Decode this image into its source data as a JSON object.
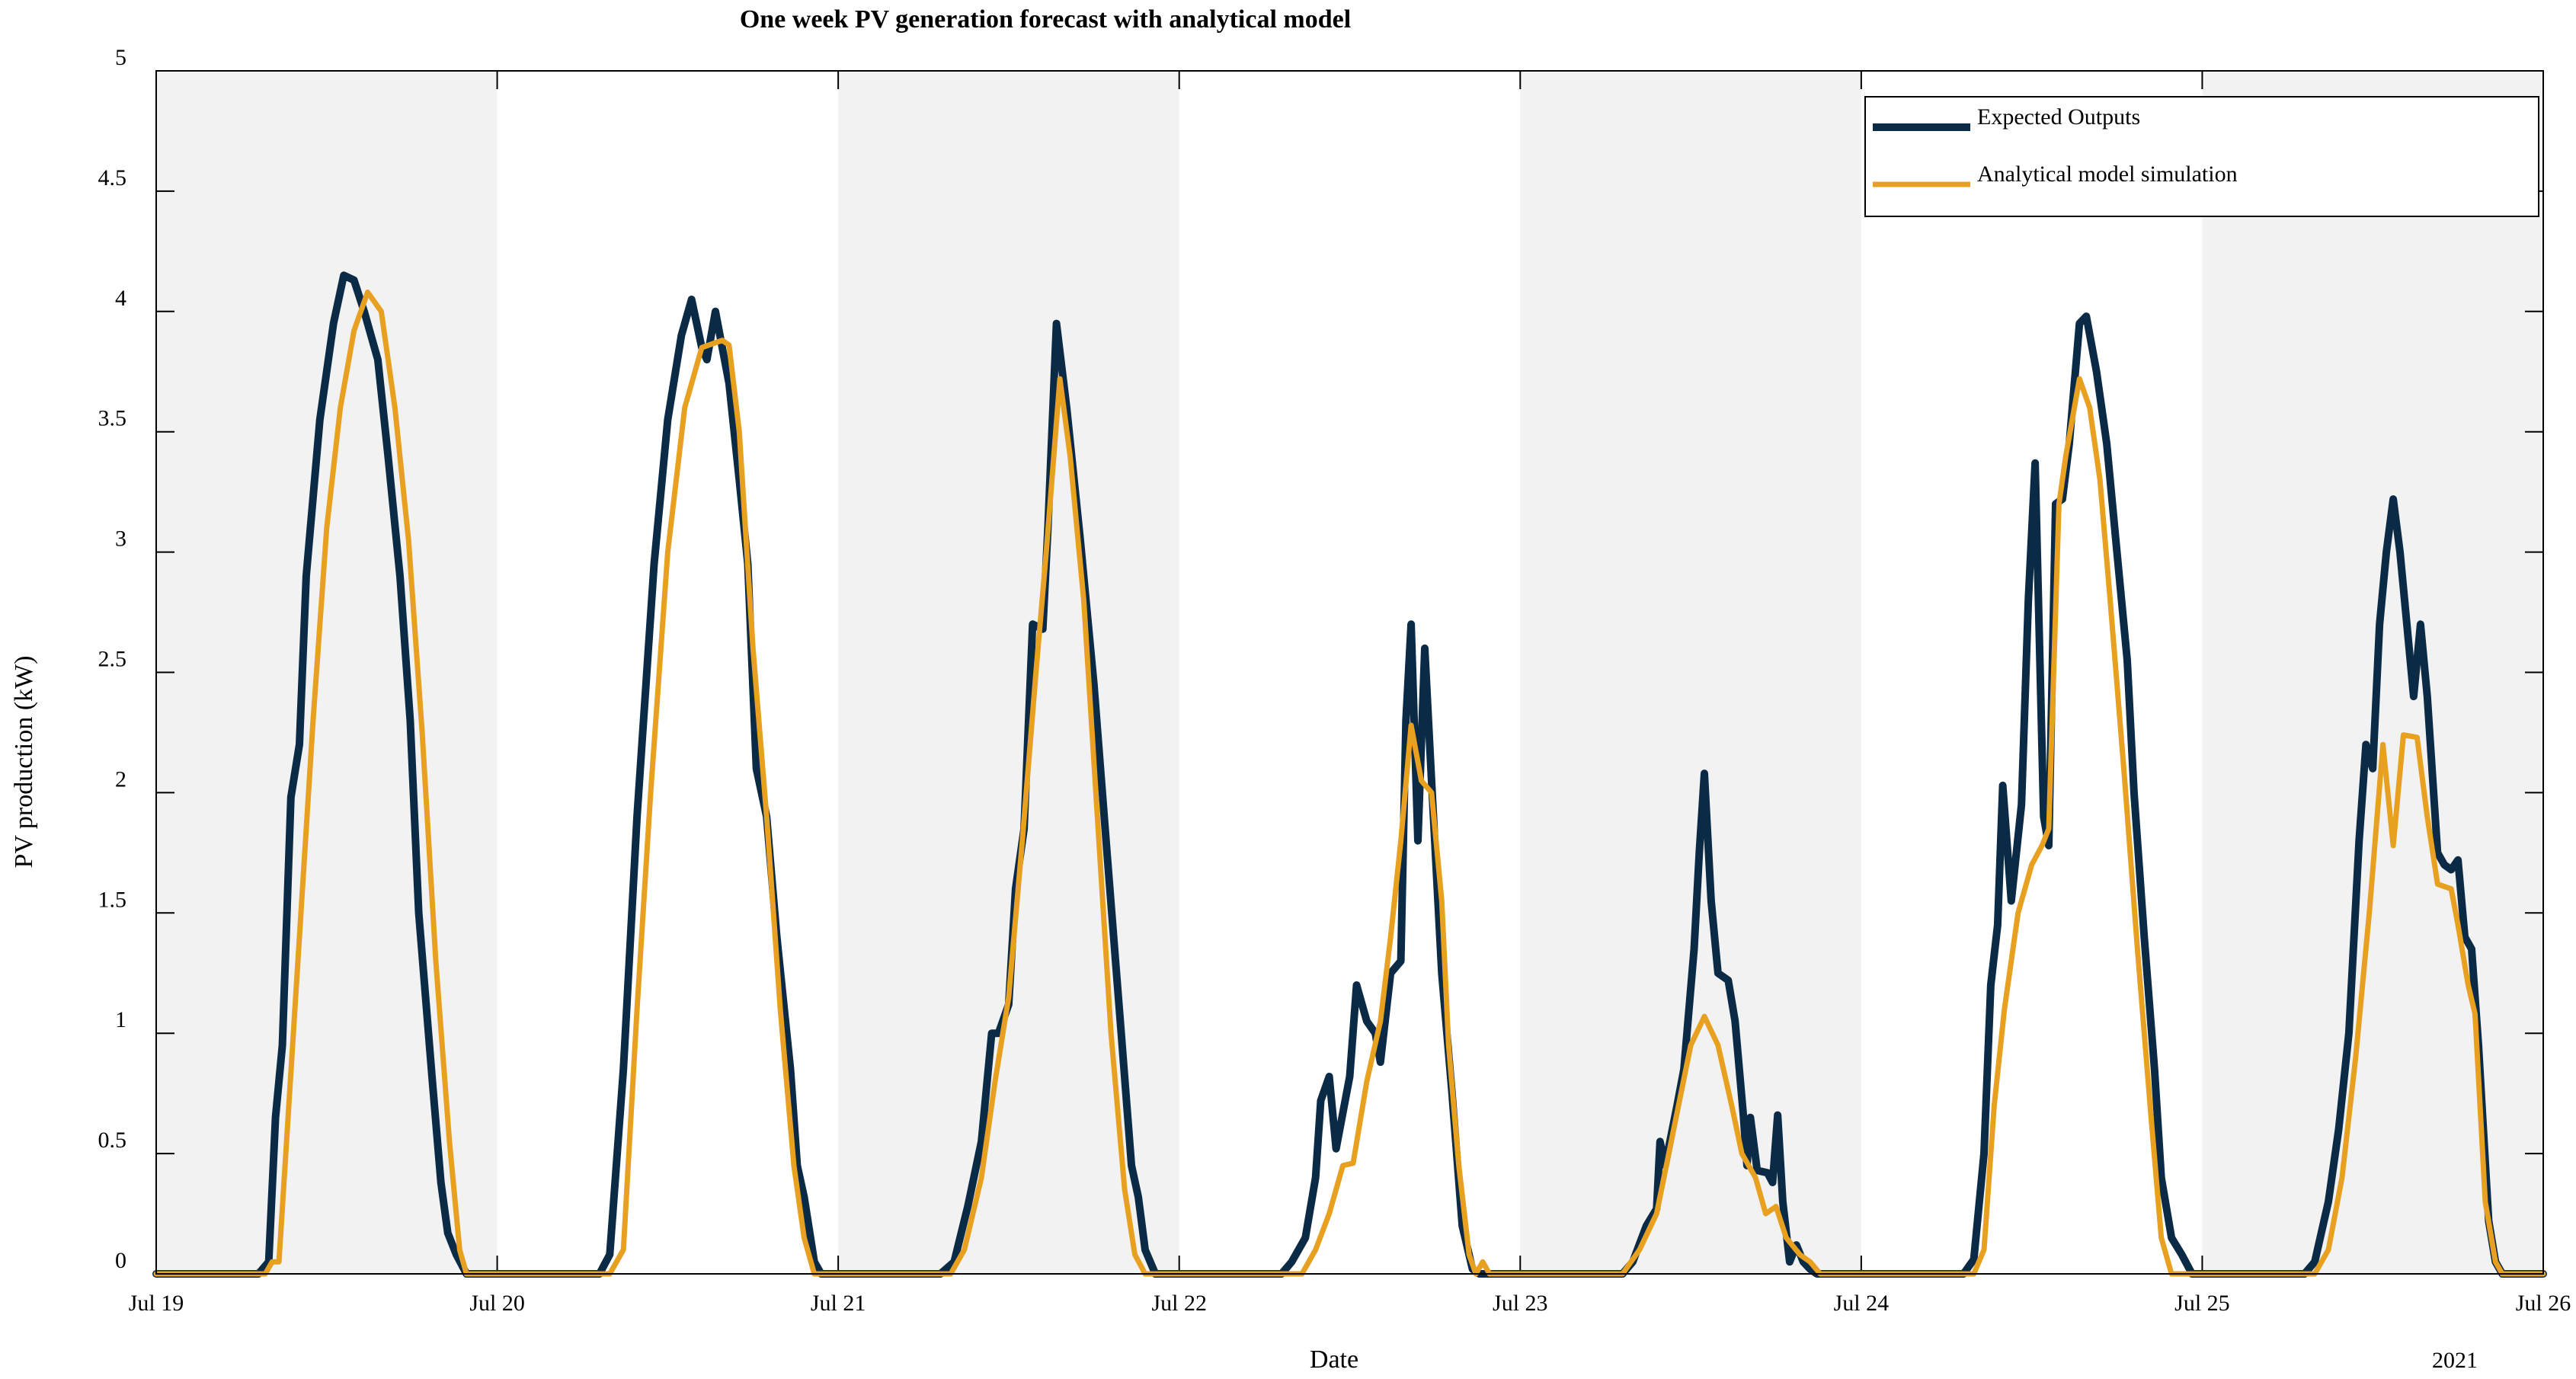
{
  "chart_data": {
    "type": "line",
    "title": "One week PV generation forecast with analytical model",
    "xlabel": "Date",
    "ylabel": "PV production (kW)",
    "year_label": "2021",
    "x_unit": "days since Jul 19, 2021",
    "xlim": [
      0,
      7
    ],
    "ylim": [
      0,
      5
    ],
    "x_ticks": [
      0,
      1,
      2,
      3,
      4,
      5,
      6,
      7
    ],
    "x_tick_labels": [
      "Jul 19",
      "Jul 20",
      "Jul 21",
      "Jul 22",
      "Jul 23",
      "Jul 24",
      "Jul 25",
      "Jul 26"
    ],
    "y_ticks": [
      0,
      0.5,
      1,
      1.5,
      2,
      2.5,
      3,
      3.5,
      4,
      4.5,
      5
    ],
    "y_tick_labels": [
      "0",
      "0.5",
      "1",
      "1.5",
      "2",
      "2.5",
      "3",
      "3.5",
      "4",
      "4.5",
      "5"
    ],
    "grid": false,
    "shaded_day_bands": [
      [
        0,
        1
      ],
      [
        2,
        3
      ],
      [
        4,
        5
      ],
      [
        6,
        7
      ]
    ],
    "legend": {
      "placement": "top-right"
    },
    "series": [
      {
        "name": "Expected Outputs",
        "color": "#0b2a45",
        "points": [
          [
            0,
            0
          ],
          [
            0.3,
            0
          ],
          [
            0.33,
            0.05
          ],
          [
            0.35,
            0.65
          ],
          [
            0.37,
            0.95
          ],
          [
            0.395,
            1.98
          ],
          [
            0.42,
            2.2
          ],
          [
            0.44,
            2.9
          ],
          [
            0.48,
            3.55
          ],
          [
            0.52,
            3.95
          ],
          [
            0.55,
            4.15
          ],
          [
            0.58,
            4.13
          ],
          [
            0.61,
            4.0
          ],
          [
            0.65,
            3.8
          ],
          [
            0.68,
            3.4
          ],
          [
            0.715,
            2.9
          ],
          [
            0.745,
            2.3
          ],
          [
            0.77,
            1.5
          ],
          [
            0.81,
            0.8
          ],
          [
            0.835,
            0.38
          ],
          [
            0.855,
            0.17
          ],
          [
            0.88,
            0.08
          ],
          [
            0.91,
            0
          ],
          [
            1,
            0
          ],
          [
            1.3,
            0
          ],
          [
            1.33,
            0.08
          ],
          [
            1.37,
            0.85
          ],
          [
            1.41,
            1.9
          ],
          [
            1.46,
            2.95
          ],
          [
            1.5,
            3.55
          ],
          [
            1.54,
            3.9
          ],
          [
            1.57,
            4.05
          ],
          [
            1.6,
            3.85
          ],
          [
            1.615,
            3.8
          ],
          [
            1.64,
            4.0
          ],
          [
            1.68,
            3.7
          ],
          [
            1.71,
            3.3
          ],
          [
            1.735,
            2.95
          ],
          [
            1.76,
            2.1
          ],
          [
            1.79,
            1.9
          ],
          [
            1.82,
            1.4
          ],
          [
            1.86,
            0.85
          ],
          [
            1.88,
            0.45
          ],
          [
            1.9,
            0.32
          ],
          [
            1.93,
            0.05
          ],
          [
            1.95,
            0
          ],
          [
            2,
            0
          ],
          [
            2.3,
            0
          ],
          [
            2.34,
            0.05
          ],
          [
            2.38,
            0.28
          ],
          [
            2.42,
            0.55
          ],
          [
            2.45,
            1.0
          ],
          [
            2.47,
            1.0
          ],
          [
            2.5,
            1.12
          ],
          [
            2.52,
            1.6
          ],
          [
            2.545,
            1.85
          ],
          [
            2.57,
            2.7
          ],
          [
            2.6,
            2.68
          ],
          [
            2.615,
            3.1
          ],
          [
            2.64,
            3.95
          ],
          [
            2.67,
            3.6
          ],
          [
            2.71,
            3.05
          ],
          [
            2.75,
            2.45
          ],
          [
            2.79,
            1.72
          ],
          [
            2.83,
            1.0
          ],
          [
            2.86,
            0.45
          ],
          [
            2.88,
            0.32
          ],
          [
            2.9,
            0.1
          ],
          [
            2.93,
            0
          ],
          [
            3,
            0
          ],
          [
            3.3,
            0
          ],
          [
            3.33,
            0.05
          ],
          [
            3.37,
            0.15
          ],
          [
            3.4,
            0.4
          ],
          [
            3.415,
            0.72
          ],
          [
            3.44,
            0.82
          ],
          [
            3.46,
            0.52
          ],
          [
            3.5,
            0.82
          ],
          [
            3.52,
            1.2
          ],
          [
            3.55,
            1.05
          ],
          [
            3.575,
            1.0
          ],
          [
            3.59,
            0.88
          ],
          [
            3.62,
            1.25
          ],
          [
            3.65,
            1.3
          ],
          [
            3.665,
            2.3
          ],
          [
            3.68,
            2.7
          ],
          [
            3.7,
            1.8
          ],
          [
            3.72,
            2.6
          ],
          [
            3.74,
            2.05
          ],
          [
            3.77,
            1.25
          ],
          [
            3.8,
            0.75
          ],
          [
            3.83,
            0.2
          ],
          [
            3.86,
            0.02
          ],
          [
            3.88,
            0
          ],
          [
            4,
            0
          ],
          [
            4.3,
            0
          ],
          [
            4.33,
            0.05
          ],
          [
            4.37,
            0.2
          ],
          [
            4.4,
            0.27
          ],
          [
            4.41,
            0.55
          ],
          [
            4.425,
            0.45
          ],
          [
            4.46,
            0.7
          ],
          [
            4.48,
            0.85
          ],
          [
            4.51,
            1.35
          ],
          [
            4.525,
            1.75
          ],
          [
            4.54,
            2.08
          ],
          [
            4.56,
            1.55
          ],
          [
            4.58,
            1.25
          ],
          [
            4.61,
            1.22
          ],
          [
            4.63,
            1.05
          ],
          [
            4.655,
            0.65
          ],
          [
            4.665,
            0.45
          ],
          [
            4.675,
            0.65
          ],
          [
            4.695,
            0.43
          ],
          [
            4.725,
            0.42
          ],
          [
            4.74,
            0.38
          ],
          [
            4.755,
            0.66
          ],
          [
            4.77,
            0.3
          ],
          [
            4.79,
            0.05
          ],
          [
            4.81,
            0.12
          ],
          [
            4.83,
            0.05
          ],
          [
            4.85,
            0.02
          ],
          [
            4.87,
            0
          ],
          [
            5,
            0
          ],
          [
            5.3,
            0
          ],
          [
            5.33,
            0.06
          ],
          [
            5.36,
            0.5
          ],
          [
            5.38,
            1.2
          ],
          [
            5.4,
            1.45
          ],
          [
            5.415,
            2.03
          ],
          [
            5.44,
            1.55
          ],
          [
            5.47,
            1.95
          ],
          [
            5.49,
            2.8
          ],
          [
            5.51,
            3.37
          ],
          [
            5.535,
            1.9
          ],
          [
            5.55,
            1.78
          ],
          [
            5.57,
            3.2
          ],
          [
            5.59,
            3.22
          ],
          [
            5.61,
            3.45
          ],
          [
            5.64,
            3.95
          ],
          [
            5.66,
            3.98
          ],
          [
            5.69,
            3.75
          ],
          [
            5.72,
            3.45
          ],
          [
            5.75,
            3.0
          ],
          [
            5.78,
            2.55
          ],
          [
            5.8,
            2.0
          ],
          [
            5.83,
            1.4
          ],
          [
            5.86,
            0.85
          ],
          [
            5.88,
            0.4
          ],
          [
            5.91,
            0.15
          ],
          [
            5.94,
            0.08
          ],
          [
            5.97,
            0
          ],
          [
            6,
            0
          ],
          [
            6.3,
            0
          ],
          [
            6.33,
            0.05
          ],
          [
            6.37,
            0.3
          ],
          [
            6.4,
            0.6
          ],
          [
            6.43,
            1.0
          ],
          [
            6.46,
            1.8
          ],
          [
            6.48,
            2.2
          ],
          [
            6.5,
            2.1
          ],
          [
            6.52,
            2.7
          ],
          [
            6.54,
            3.0
          ],
          [
            6.56,
            3.22
          ],
          [
            6.58,
            3.0
          ],
          [
            6.6,
            2.7
          ],
          [
            6.62,
            2.4
          ],
          [
            6.64,
            2.7
          ],
          [
            6.66,
            2.4
          ],
          [
            6.69,
            1.75
          ],
          [
            6.71,
            1.7
          ],
          [
            6.73,
            1.68
          ],
          [
            6.75,
            1.72
          ],
          [
            6.77,
            1.4
          ],
          [
            6.79,
            1.35
          ],
          [
            6.81,
            0.95
          ],
          [
            6.84,
            0.22
          ],
          [
            6.86,
            0.05
          ],
          [
            6.88,
            0
          ],
          [
            7,
            0
          ]
        ]
      },
      {
        "name": "Analytical model simulation",
        "color": "#e8a020",
        "points": [
          [
            0,
            0
          ],
          [
            0.32,
            0
          ],
          [
            0.34,
            0.05
          ],
          [
            0.36,
            0.05
          ],
          [
            0.38,
            0.5
          ],
          [
            0.42,
            1.4
          ],
          [
            0.46,
            2.3
          ],
          [
            0.5,
            3.1
          ],
          [
            0.54,
            3.6
          ],
          [
            0.58,
            3.92
          ],
          [
            0.62,
            4.08
          ],
          [
            0.66,
            4.0
          ],
          [
            0.7,
            3.6
          ],
          [
            0.74,
            3.05
          ],
          [
            0.78,
            2.25
          ],
          [
            0.82,
            1.3
          ],
          [
            0.86,
            0.55
          ],
          [
            0.89,
            0.1
          ],
          [
            0.91,
            0
          ],
          [
            1,
            0
          ],
          [
            1.33,
            0
          ],
          [
            1.37,
            0.1
          ],
          [
            1.41,
            1.1
          ],
          [
            1.45,
            2.0
          ],
          [
            1.5,
            3.0
          ],
          [
            1.55,
            3.6
          ],
          [
            1.6,
            3.85
          ],
          [
            1.66,
            3.88
          ],
          [
            1.68,
            3.86
          ],
          [
            1.71,
            3.5
          ],
          [
            1.75,
            2.6
          ],
          [
            1.79,
            1.9
          ],
          [
            1.83,
            1.1
          ],
          [
            1.87,
            0.45
          ],
          [
            1.9,
            0.15
          ],
          [
            1.93,
            0
          ],
          [
            2,
            0
          ],
          [
            2.33,
            0
          ],
          [
            2.37,
            0.1
          ],
          [
            2.42,
            0.4
          ],
          [
            2.46,
            0.8
          ],
          [
            2.5,
            1.15
          ],
          [
            2.54,
            1.8
          ],
          [
            2.58,
            2.5
          ],
          [
            2.61,
            3.0
          ],
          [
            2.65,
            3.72
          ],
          [
            2.68,
            3.4
          ],
          [
            2.72,
            2.8
          ],
          [
            2.76,
            1.9
          ],
          [
            2.8,
            1.0
          ],
          [
            2.84,
            0.35
          ],
          [
            2.87,
            0.08
          ],
          [
            2.9,
            0
          ],
          [
            3,
            0
          ],
          [
            3.36,
            0
          ],
          [
            3.4,
            0.1
          ],
          [
            3.44,
            0.25
          ],
          [
            3.48,
            0.45
          ],
          [
            3.51,
            0.46
          ],
          [
            3.55,
            0.8
          ],
          [
            3.59,
            1.05
          ],
          [
            3.62,
            1.4
          ],
          [
            3.65,
            1.8
          ],
          [
            3.68,
            2.28
          ],
          [
            3.71,
            2.05
          ],
          [
            3.74,
            2.0
          ],
          [
            3.77,
            1.55
          ],
          [
            3.79,
            0.95
          ],
          [
            3.82,
            0.45
          ],
          [
            3.85,
            0.08
          ],
          [
            3.87,
            0
          ],
          [
            3.89,
            0.05
          ],
          [
            3.91,
            0
          ],
          [
            4,
            0
          ],
          [
            4.3,
            0
          ],
          [
            4.35,
            0.1
          ],
          [
            4.4,
            0.25
          ],
          [
            4.45,
            0.6
          ],
          [
            4.5,
            0.95
          ],
          [
            4.54,
            1.07
          ],
          [
            4.58,
            0.95
          ],
          [
            4.62,
            0.7
          ],
          [
            4.65,
            0.5
          ],
          [
            4.69,
            0.4
          ],
          [
            4.72,
            0.25
          ],
          [
            4.75,
            0.28
          ],
          [
            4.78,
            0.15
          ],
          [
            4.82,
            0.08
          ],
          [
            4.85,
            0.05
          ],
          [
            4.88,
            0
          ],
          [
            5,
            0
          ],
          [
            5.33,
            0
          ],
          [
            5.36,
            0.1
          ],
          [
            5.39,
            0.7
          ],
          [
            5.42,
            1.1
          ],
          [
            5.46,
            1.5
          ],
          [
            5.5,
            1.7
          ],
          [
            5.53,
            1.78
          ],
          [
            5.55,
            1.85
          ],
          [
            5.58,
            3.2
          ],
          [
            5.6,
            3.4
          ],
          [
            5.64,
            3.72
          ],
          [
            5.67,
            3.6
          ],
          [
            5.7,
            3.3
          ],
          [
            5.73,
            2.8
          ],
          [
            5.77,
            2.1
          ],
          [
            5.81,
            1.35
          ],
          [
            5.85,
            0.65
          ],
          [
            5.88,
            0.15
          ],
          [
            5.91,
            0
          ],
          [
            6,
            0
          ],
          [
            6.33,
            0
          ],
          [
            6.37,
            0.1
          ],
          [
            6.41,
            0.4
          ],
          [
            6.45,
            0.9
          ],
          [
            6.49,
            1.5
          ],
          [
            6.53,
            2.2
          ],
          [
            6.56,
            1.78
          ],
          [
            6.59,
            2.24
          ],
          [
            6.63,
            2.23
          ],
          [
            6.66,
            1.9
          ],
          [
            6.69,
            1.62
          ],
          [
            6.73,
            1.6
          ],
          [
            6.75,
            1.45
          ],
          [
            6.78,
            1.2
          ],
          [
            6.8,
            1.08
          ],
          [
            6.83,
            0.3
          ],
          [
            6.86,
            0.05
          ],
          [
            6.88,
            0
          ],
          [
            7,
            0
          ]
        ]
      }
    ]
  }
}
